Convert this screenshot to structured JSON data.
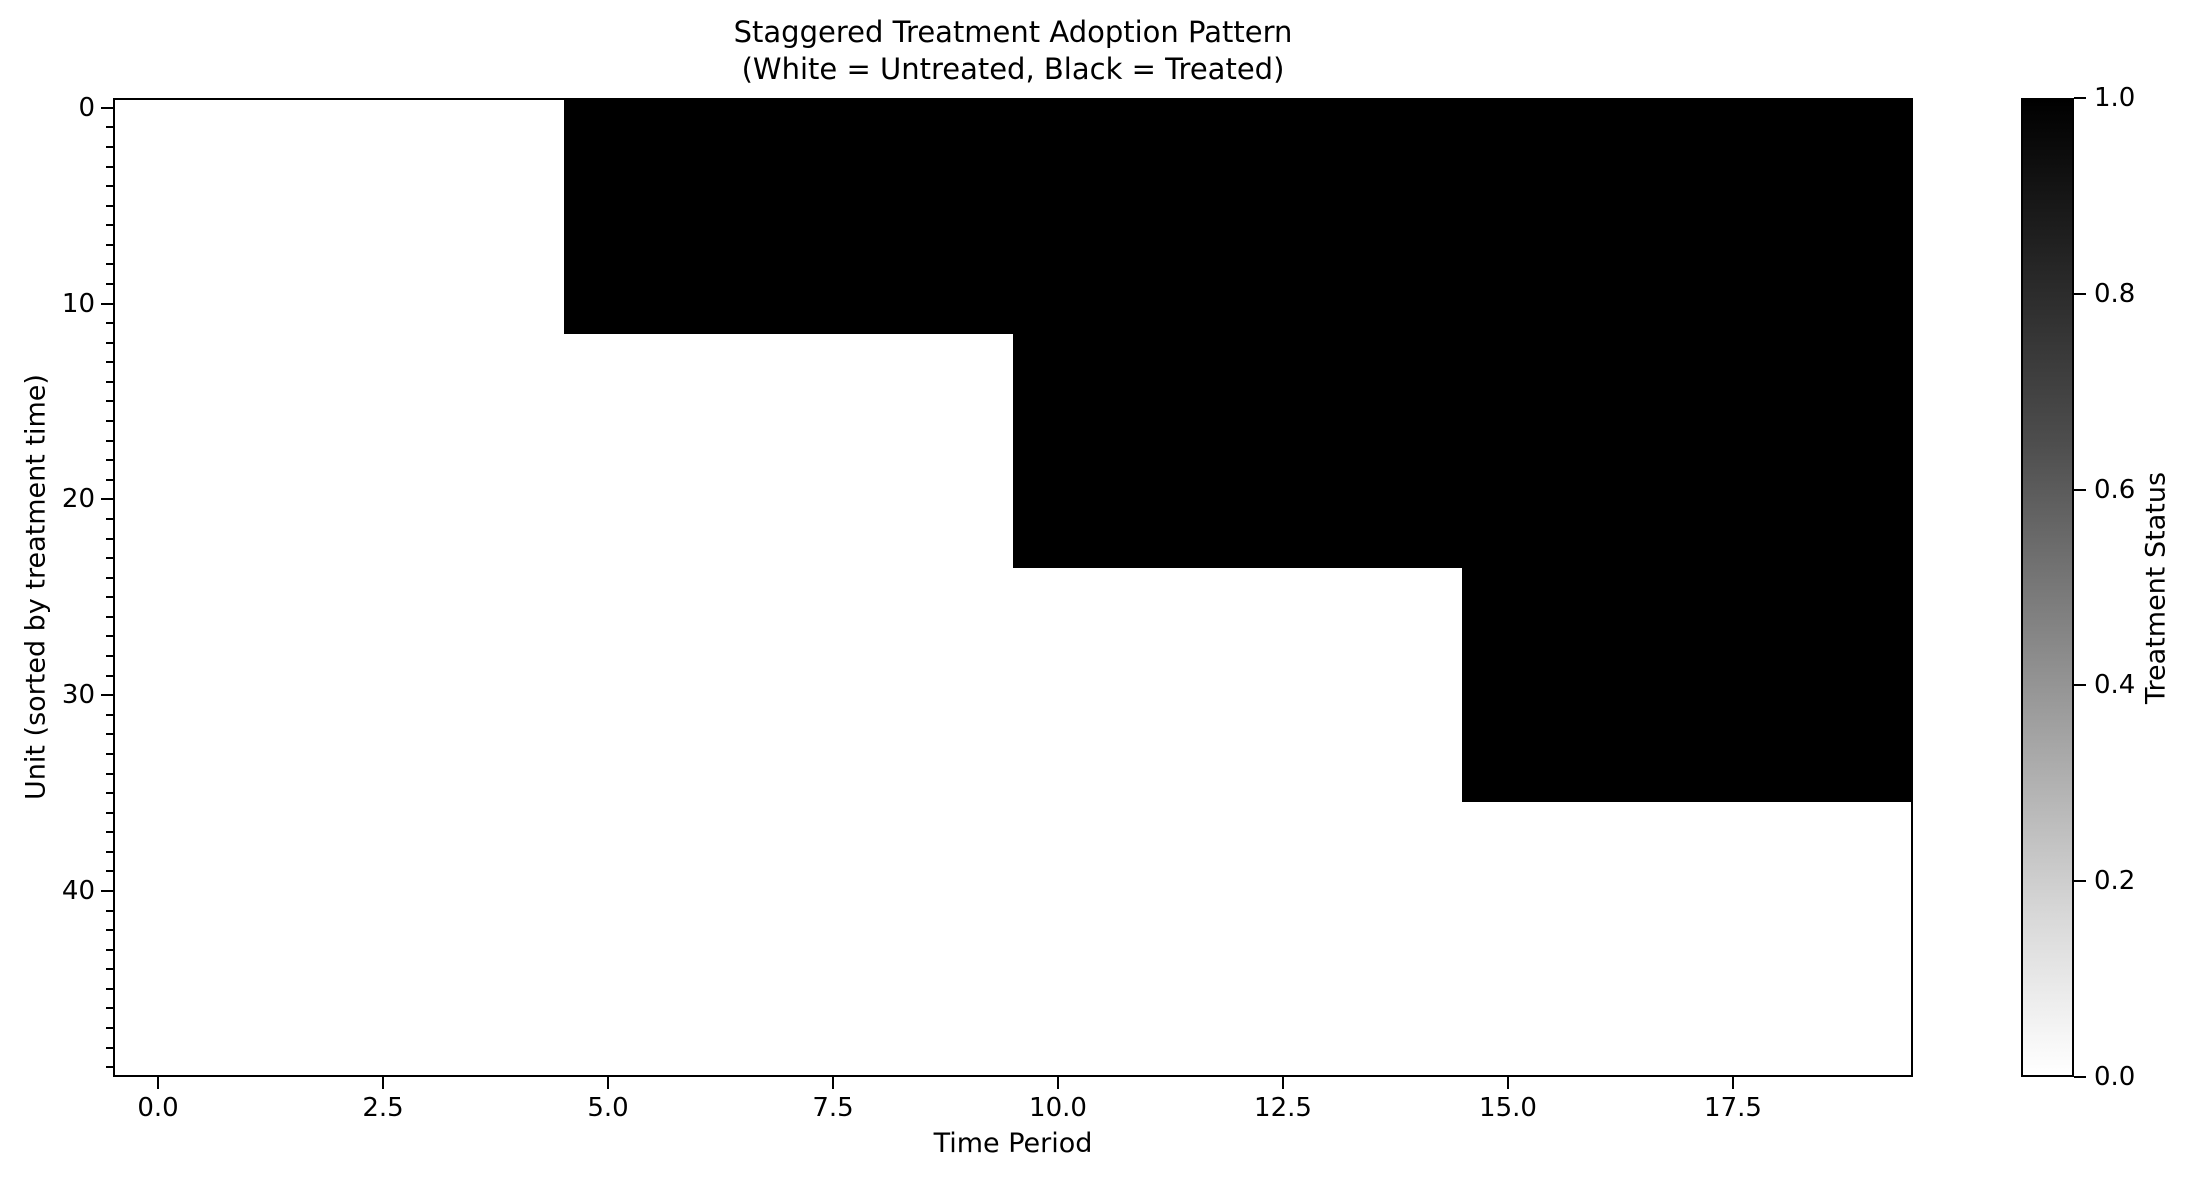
{
  "chart_data": {
    "type": "heatmap",
    "title": "Staggered Treatment Adoption Pattern",
    "subtitle": "(White = Untreated, Black = Treated)",
    "xlabel": "Time Period",
    "ylabel": "Unit (sorted by treatment time)",
    "colorbar_label": "Treatment Status",
    "x_ticks": [
      "0.0",
      "2.5",
      "5.0",
      "7.5",
      "10.0",
      "12.5",
      "15.0",
      "17.5"
    ],
    "y_ticks": [
      "0",
      "10",
      "20",
      "30",
      "40"
    ],
    "colorbar_ticks": [
      "1.0",
      "0.8",
      "0.6",
      "0.4",
      "0.2",
      "0.0"
    ],
    "x_range": [
      -0.5,
      19.5
    ],
    "y_range": [
      -0.5,
      49.5
    ],
    "n_periods": 20,
    "n_units": 50,
    "value_colors": {
      "untreated_0": "#ffffff",
      "treated_1": "#000000"
    },
    "colorbar_range": [
      0.0,
      1.0
    ],
    "cohorts": [
      {
        "unit_start": 0,
        "unit_end": 11,
        "n_units": 12,
        "treatment_start_period": 5
      },
      {
        "unit_start": 12,
        "unit_end": 23,
        "n_units": 12,
        "treatment_start_period": 10
      },
      {
        "unit_start": 24,
        "unit_end": 35,
        "n_units": 12,
        "treatment_start_period": 15
      },
      {
        "unit_start": 36,
        "unit_end": 49,
        "n_units": 14,
        "treatment_start_period": null
      }
    ]
  }
}
